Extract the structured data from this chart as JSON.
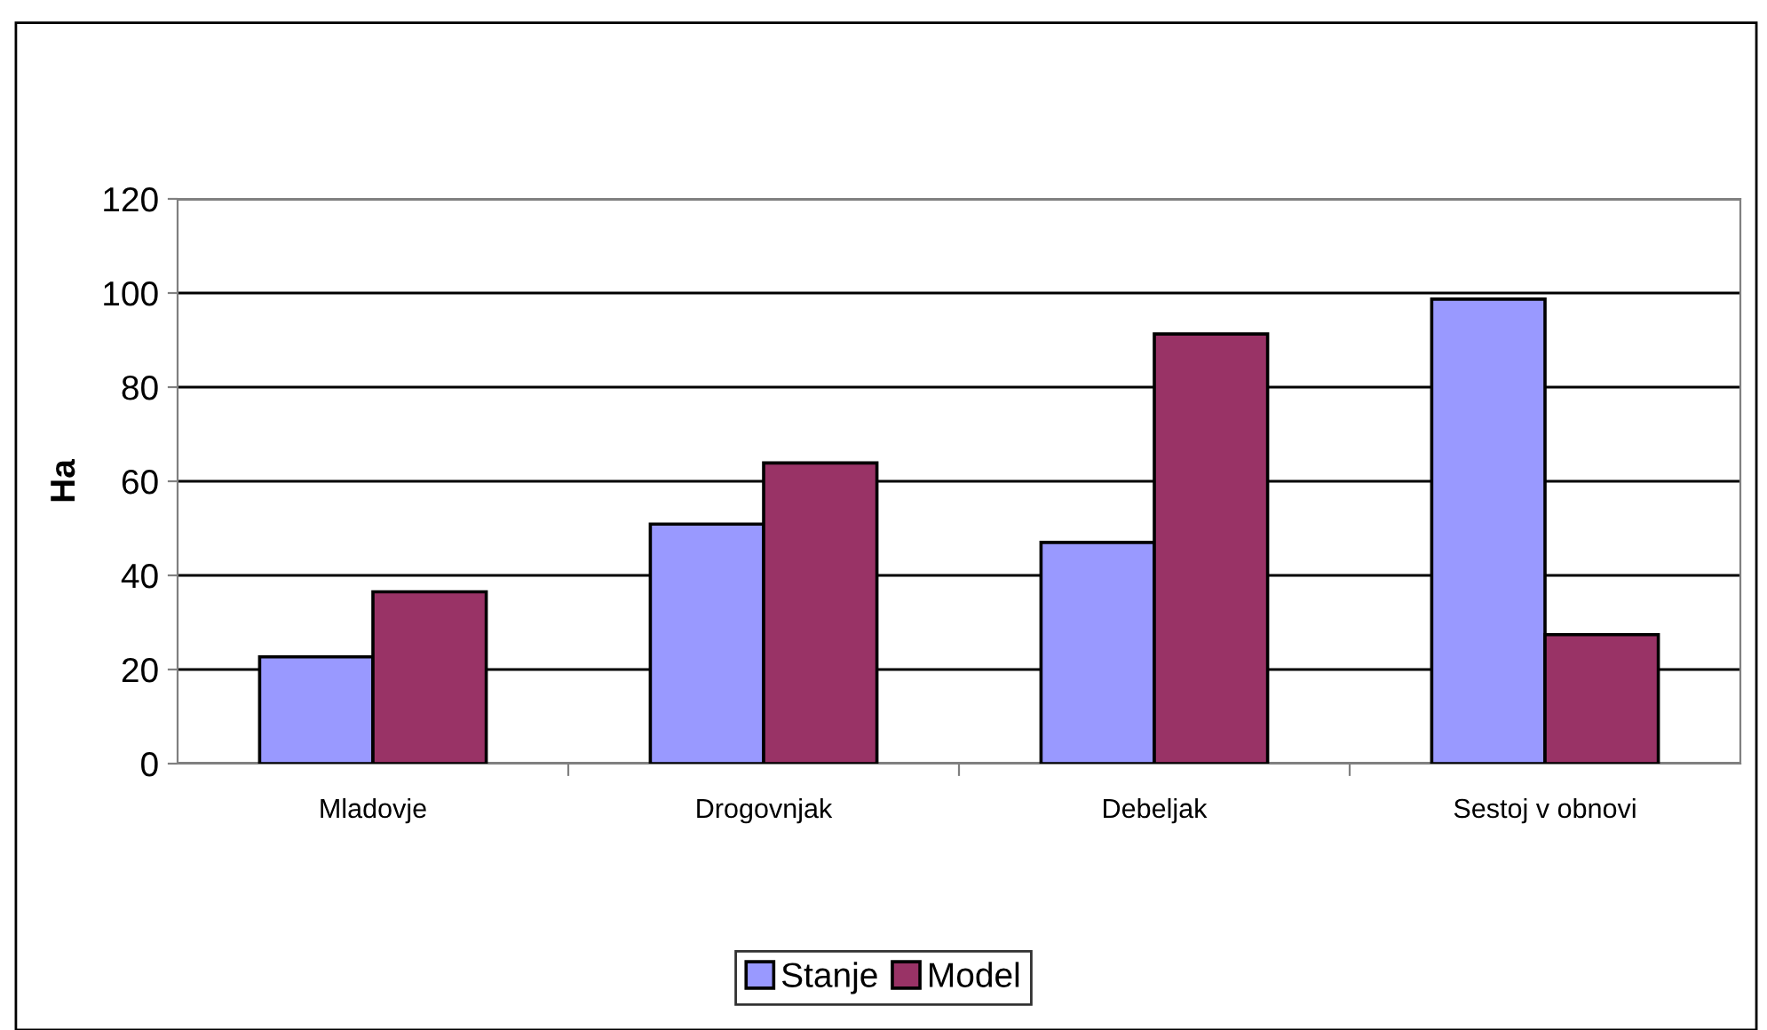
{
  "chart_data": {
    "type": "bar",
    "ylabel": "Ha",
    "categories": [
      "Mladovje",
      "Drogovnjak",
      "Debeljak",
      "Sestoj v obnovi"
    ],
    "series": [
      {
        "name": "Stanje",
        "color": "#9999ff",
        "values": [
          22.7,
          50.9,
          47.0,
          98.7
        ]
      },
      {
        "name": "Model",
        "color": "#993366",
        "values": [
          36.5,
          63.9,
          91.3,
          27.4
        ]
      }
    ],
    "ylim": [
      0,
      120
    ],
    "yticks": [
      0,
      20,
      40,
      60,
      80,
      100,
      120
    ],
    "grid": "y",
    "legend": "bottom"
  }
}
